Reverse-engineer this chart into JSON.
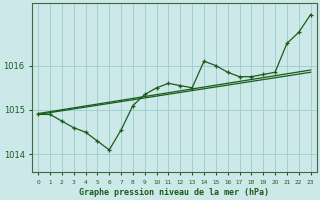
{
  "xlabel": "Graphe pression niveau de la mer (hPa)",
  "bg_color": "#cce8e8",
  "grid_color": "#99cccc",
  "line_color": "#1a5c1a",
  "xlim": [
    -0.5,
    23.5
  ],
  "ylim": [
    1013.6,
    1017.4
  ],
  "yticks": [
    1014,
    1015,
    1016
  ],
  "xtick_labels": [
    "0",
    "1",
    "2",
    "3",
    "4",
    "5",
    "6",
    "7",
    "8",
    "9",
    "10",
    "11",
    "12",
    "13",
    "14",
    "15",
    "16",
    "17",
    "18",
    "19",
    "20",
    "21",
    "22",
    "23"
  ],
  "trend1_x": [
    0,
    23
  ],
  "trend1_y": [
    1014.9,
    1015.85
  ],
  "trend2_x": [
    0,
    23
  ],
  "trend2_y": [
    1014.92,
    1015.9
  ],
  "main_x": [
    0,
    1,
    2,
    3,
    4,
    5,
    6,
    7,
    8,
    9,
    10,
    11,
    12,
    13,
    14,
    15,
    16,
    17,
    18,
    19,
    20,
    21,
    22,
    23
  ],
  "main_y": [
    1014.9,
    1014.9,
    1014.75,
    1014.6,
    1014.5,
    1014.3,
    1014.1,
    1014.55,
    1015.1,
    1015.35,
    1015.5,
    1015.6,
    1015.55,
    1015.5,
    1016.1,
    1016.0,
    1015.85,
    1015.75,
    1015.75,
    1015.8,
    1015.85,
    1016.5,
    1016.75,
    1017.15
  ]
}
